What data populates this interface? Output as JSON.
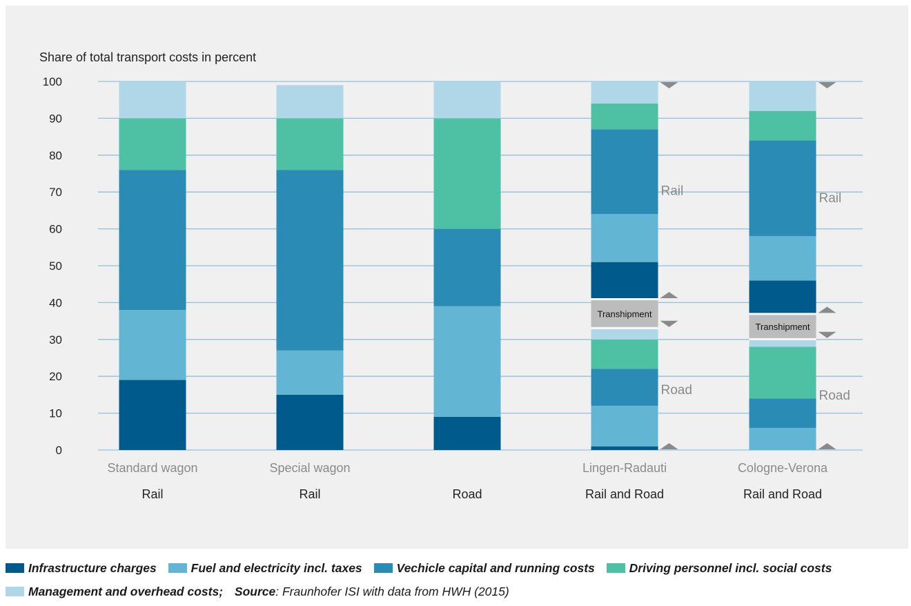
{
  "chart_data": {
    "type": "bar",
    "stacked": true,
    "ylabel": "Share of total transport costs in percent",
    "ylim": [
      0,
      100
    ],
    "yticks": [
      0,
      10,
      20,
      30,
      40,
      50,
      60,
      70,
      80,
      90,
      100
    ],
    "grid": true,
    "categories": [
      {
        "sub": "Standard wagon",
        "mode": "Rail"
      },
      {
        "sub": "Special wagon",
        "mode": "Rail"
      },
      {
        "sub": "",
        "mode": "Road"
      },
      {
        "sub": "Lingen-Radauti",
        "mode": "Rail and Road"
      },
      {
        "sub": "Cologne-Verona",
        "mode": "Rail and Road"
      }
    ],
    "series": [
      {
        "name": "Infrastructure charges",
        "color": "#005a8c"
      },
      {
        "name": "Fuel and electricity incl. taxes",
        "color": "#62b6d3"
      },
      {
        "name": "Vechicle capital and running costs",
        "color": "#2a8bb5"
      },
      {
        "name": "Driving personnel incl. social costs",
        "color": "#4ec1a4"
      },
      {
        "name": "Management and overhead costs",
        "color": "#b0d7e8"
      }
    ],
    "simple_bars": [
      {
        "values": [
          19,
          19,
          38,
          14,
          10
        ]
      },
      {
        "values": [
          15,
          12,
          49,
          14,
          9
        ]
      },
      {
        "values": [
          9,
          30,
          21,
          30,
          10
        ]
      }
    ],
    "split_bars": [
      {
        "road": {
          "values": [
            1,
            11,
            10,
            8,
            3
          ],
          "label": "Road"
        },
        "transhipment": {
          "bottom": 33,
          "top": 41,
          "label": "Transhipment"
        },
        "rail": {
          "bottom": 41,
          "values": [
            10,
            13,
            23,
            7,
            6
          ],
          "label": "Rail"
        }
      },
      {
        "road": {
          "values": [
            0,
            6,
            8,
            14,
            2
          ],
          "label": "Road"
        },
        "transhipment": {
          "bottom": 30,
          "top": 37,
          "label": "Transhipment"
        },
        "rail": {
          "bottom": 37,
          "values": [
            9,
            12,
            26,
            8,
            8
          ],
          "label": "Rail"
        }
      }
    ]
  },
  "legend": {
    "items": [
      {
        "label": "Infrastructure charges",
        "color": "#005a8c"
      },
      {
        "label": "Fuel and electricity incl. taxes",
        "color": "#62b6d3"
      },
      {
        "label": "Vechicle capital and running costs",
        "color": "#2a8bb5"
      },
      {
        "label": "Driving personnel incl. social costs",
        "color": "#4ec1a4"
      },
      {
        "label": "Management and overhead costs;",
        "color": "#b0d7e8"
      }
    ],
    "source_label": "Source",
    "source_text": ": Fraunhofer ISI with data from HWH (2015)"
  },
  "colors": {
    "panel": "#f0f0f0",
    "grid": "#8fc1d9",
    "transhipment": "#bcbcbc",
    "marker": "#8a8a8a",
    "sublabel": "#8a8a8a"
  }
}
